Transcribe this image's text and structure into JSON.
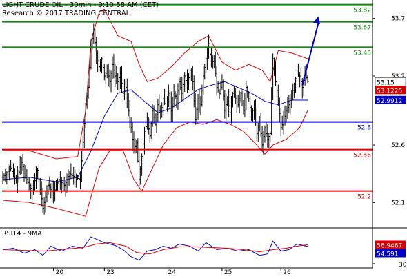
{
  "header": {
    "title": "LIGHT CRUDE OIL - 30min - 9:10:58 AM (CET)",
    "copyright": "Research © 2017 TRADING CENTRAL"
  },
  "rsi_panel": {
    "title": "RSI14 - 9MA"
  },
  "colors": {
    "price_bars": "#000000",
    "bollinger": "#dd0000",
    "moving_average": "#0000cc",
    "resistance": "#118811",
    "pivot": "#0000cc",
    "support": "#dd0000",
    "forecast_arrow": "#0000cc",
    "rsi_line": "#0000cc",
    "rsi_ma": "#dd0000",
    "last_price_tag": "#000000",
    "bb_value_tag": "#dd0000",
    "ma_value_tag": "#0000cc"
  },
  "chart_data": [
    {
      "type": "ohlc",
      "title": "LIGHT CRUDE OIL - 30min - 9:10:58 AM (CET)",
      "ylim": [
        51.88,
        53.86
      ],
      "x_tick_labels": [
        "20",
        "23",
        "24",
        "25",
        "26"
      ],
      "y_tick_labels": [
        "53.7",
        "53.2",
        "52.6",
        "52.1"
      ],
      "y_ticks": [
        53.7,
        53.2,
        52.6,
        52.1
      ],
      "levels": [
        {
          "label": "53.82",
          "value": 53.82,
          "kind": "resistance"
        },
        {
          "label": "53.67",
          "value": 53.67,
          "kind": "resistance"
        },
        {
          "label": "53.45",
          "value": 53.45,
          "kind": "resistance"
        },
        {
          "label": "52.8",
          "value": 52.8,
          "kind": "pivot"
        },
        {
          "label": "52.56",
          "value": 52.56,
          "kind": "support"
        },
        {
          "label": "52.2",
          "value": 52.2,
          "kind": "support"
        }
      ],
      "value_tags": [
        {
          "label": "53.15",
          "value": 53.15,
          "kind": "last"
        },
        {
          "label": "53.1225",
          "value": 53.1225,
          "kind": "bollinger"
        },
        {
          "label": "52.9912",
          "value": 52.9912,
          "kind": "ma"
        }
      ],
      "close_path": [
        [
          0,
          52.32
        ],
        [
          3,
          52.4
        ],
        [
          5,
          52.28
        ],
        [
          7,
          52.45
        ],
        [
          9,
          52.3
        ],
        [
          11,
          52.2
        ],
        [
          13,
          52.38
        ],
        [
          15,
          52.05
        ],
        [
          17,
          52.25
        ],
        [
          19,
          52.18
        ],
        [
          21,
          52.3
        ],
        [
          23,
          52.25
        ],
        [
          25,
          52.35
        ],
        [
          27,
          52.32
        ],
        [
          29,
          52.3
        ],
        [
          31,
          52.95
        ],
        [
          32,
          53.1
        ],
        [
          33,
          53.45
        ],
        [
          34,
          53.6
        ],
        [
          35,
          53.38
        ],
        [
          36,
          53.28
        ],
        [
          37,
          53.35
        ],
        [
          38,
          53.2
        ],
        [
          39,
          53.25
        ],
        [
          40,
          53.15
        ],
        [
          41,
          53.3
        ],
        [
          42,
          53.2
        ],
        [
          43,
          53.15
        ],
        [
          44,
          53.22
        ],
        [
          45,
          53.05
        ],
        [
          46,
          53.1
        ],
        [
          47,
          52.9
        ],
        [
          48,
          52.75
        ],
        [
          49,
          52.55
        ],
        [
          50,
          52.62
        ],
        [
          51,
          52.3
        ],
        [
          52,
          52.5
        ],
        [
          53,
          52.72
        ],
        [
          54,
          52.8
        ],
        [
          55,
          52.68
        ],
        [
          56,
          52.9
        ],
        [
          57,
          52.78
        ],
        [
          58,
          52.95
        ],
        [
          59,
          52.85
        ],
        [
          60,
          53.0
        ],
        [
          61,
          52.92
        ],
        [
          62,
          53.05
        ],
        [
          63,
          52.9
        ],
        [
          64,
          53.05
        ],
        [
          65,
          53.0
        ],
        [
          66,
          53.15
        ],
        [
          67,
          53.05
        ],
        [
          68,
          53.2
        ],
        [
          69,
          53.12
        ],
        [
          70,
          53.25
        ],
        [
          71,
          53.15
        ],
        [
          72,
          52.82
        ],
        [
          73,
          53.0
        ],
        [
          74,
          52.95
        ],
        [
          75,
          53.2
        ],
        [
          76,
          53.35
        ],
        [
          77,
          53.48
        ],
        [
          78,
          53.3
        ],
        [
          79,
          53.35
        ],
        [
          80,
          53.1
        ],
        [
          81,
          53.05
        ],
        [
          82,
          53.15
        ],
        [
          83,
          52.9
        ],
        [
          84,
          53.0
        ],
        [
          85,
          52.88
        ],
        [
          86,
          53.05
        ],
        [
          87,
          53.0
        ],
        [
          88,
          52.95
        ],
        [
          89,
          53.05
        ],
        [
          90,
          52.9
        ],
        [
          91,
          53.1
        ],
        [
          92,
          53.0
        ],
        [
          93,
          52.85
        ],
        [
          94,
          52.95
        ],
        [
          95,
          52.7
        ],
        [
          96,
          52.8
        ],
        [
          97,
          52.6
        ],
        [
          98,
          52.75
        ],
        [
          99,
          52.65
        ],
        [
          100,
          52.7
        ],
        [
          101,
          53.35
        ],
        [
          102,
          53.15
        ],
        [
          103,
          53.0
        ],
        [
          104,
          52.75
        ],
        [
          105,
          52.8
        ],
        [
          106,
          52.9
        ],
        [
          107,
          52.95
        ],
        [
          108,
          53.05
        ],
        [
          109,
          53.1
        ],
        [
          110,
          53.25
        ],
        [
          111,
          53.2
        ],
        [
          112,
          53.1
        ],
        [
          113,
          53.22
        ],
        [
          114,
          53.15
        ]
      ],
      "x_tick_positions": [
        19,
        38,
        61,
        82,
        104
      ],
      "x_range": [
        0,
        114
      ],
      "moving_average": [
        [
          0,
          52.3
        ],
        [
          10,
          52.32
        ],
        [
          20,
          52.28
        ],
        [
          28,
          52.32
        ],
        [
          33,
          52.55
        ],
        [
          38,
          52.85
        ],
        [
          43,
          53.05
        ],
        [
          48,
          53.08
        ],
        [
          53,
          52.98
        ],
        [
          58,
          52.88
        ],
        [
          63,
          52.92
        ],
        [
          68,
          53.0
        ],
        [
          73,
          53.08
        ],
        [
          78,
          53.12
        ],
        [
          83,
          53.15
        ],
        [
          88,
          53.1
        ],
        [
          93,
          53.05
        ],
        [
          98,
          52.98
        ],
        [
          103,
          52.95
        ],
        [
          108,
          52.99
        ],
        [
          114,
          52.99
        ]
      ],
      "bollinger_upper": [
        [
          0,
          52.55
        ],
        [
          10,
          52.55
        ],
        [
          20,
          52.48
        ],
        [
          28,
          52.5
        ],
        [
          31,
          52.9
        ],
        [
          33,
          53.5
        ],
        [
          36,
          53.75
        ],
        [
          38,
          53.78
        ],
        [
          43,
          53.55
        ],
        [
          48,
          53.5
        ],
        [
          51,
          53.3
        ],
        [
          54,
          53.15
        ],
        [
          58,
          53.18
        ],
        [
          63,
          53.28
        ],
        [
          68,
          53.4
        ],
        [
          73,
          53.5
        ],
        [
          77,
          53.55
        ],
        [
          82,
          53.32
        ],
        [
          87,
          53.25
        ],
        [
          92,
          53.3
        ],
        [
          97,
          53.25
        ],
        [
          100,
          53.15
        ],
        [
          103,
          53.42
        ],
        [
          108,
          53.4
        ],
        [
          114,
          53.35
        ]
      ],
      "bollinger_lower": [
        [
          0,
          52.12
        ],
        [
          10,
          52.1
        ],
        [
          20,
          52.05
        ],
        [
          28,
          52.0
        ],
        [
          31,
          51.98
        ],
        [
          33,
          52.15
        ],
        [
          36,
          52.4
        ],
        [
          40,
          52.55
        ],
        [
          45,
          52.55
        ],
        [
          49,
          52.3
        ],
        [
          52,
          52.2
        ],
        [
          55,
          52.35
        ],
        [
          60,
          52.6
        ],
        [
          65,
          52.75
        ],
        [
          70,
          52.8
        ],
        [
          75,
          52.78
        ],
        [
          80,
          52.82
        ],
        [
          85,
          52.78
        ],
        [
          90,
          52.72
        ],
        [
          95,
          52.6
        ],
        [
          98,
          52.52
        ],
        [
          101,
          52.6
        ],
        [
          106,
          52.65
        ],
        [
          111,
          52.75
        ],
        [
          114,
          52.9
        ]
      ],
      "forecast_arrow": {
        "from": [
          112,
          53.12
        ],
        "to": [
          118,
          53.72
        ]
      }
    },
    {
      "type": "line",
      "title": "RSI14 - 9MA",
      "ylim": [
        25,
        80
      ],
      "y_tick_labels": [
        "30"
      ],
      "y_ticks": [
        30
      ],
      "value_tags": [
        {
          "label": "56.9467",
          "value": 56.9467,
          "kind": "rsi_ma"
        },
        {
          "label": "54.591",
          "value": 54.591,
          "kind": "rsi"
        }
      ],
      "series": [
        {
          "kind": "rsi",
          "points": [
            [
              0,
              50
            ],
            [
              4,
              52
            ],
            [
              8,
              45
            ],
            [
              12,
              50
            ],
            [
              15,
              42
            ],
            [
              18,
              55
            ],
            [
              22,
              48
            ],
            [
              26,
              55
            ],
            [
              30,
              52
            ],
            [
              33,
              68
            ],
            [
              35,
              65
            ],
            [
              38,
              60
            ],
            [
              42,
              56
            ],
            [
              45,
              50
            ],
            [
              48,
              40
            ],
            [
              51,
              35
            ],
            [
              54,
              48
            ],
            [
              57,
              50
            ],
            [
              60,
              55
            ],
            [
              63,
              52
            ],
            [
              66,
              58
            ],
            [
              70,
              55
            ],
            [
              73,
              48
            ],
            [
              76,
              60
            ],
            [
              80,
              50
            ],
            [
              84,
              52
            ],
            [
              88,
              48
            ],
            [
              92,
              50
            ],
            [
              96,
              42
            ],
            [
              99,
              44
            ],
            [
              101,
              62
            ],
            [
              104,
              48
            ],
            [
              107,
              50
            ],
            [
              110,
              58
            ],
            [
              114,
              54.6
            ]
          ]
        },
        {
          "kind": "rsi_ma",
          "points": [
            [
              0,
              50
            ],
            [
              8,
              49
            ],
            [
              16,
              48
            ],
            [
              24,
              51
            ],
            [
              30,
              53
            ],
            [
              35,
              58
            ],
            [
              40,
              60
            ],
            [
              46,
              55
            ],
            [
              50,
              46
            ],
            [
              55,
              44
            ],
            [
              60,
              50
            ],
            [
              66,
              54
            ],
            [
              72,
              54
            ],
            [
              78,
              53
            ],
            [
              84,
              52
            ],
            [
              90,
              50
            ],
            [
              96,
              47
            ],
            [
              101,
              50
            ],
            [
              106,
              52
            ],
            [
              110,
              55
            ],
            [
              114,
              56.9
            ]
          ]
        }
      ]
    }
  ]
}
